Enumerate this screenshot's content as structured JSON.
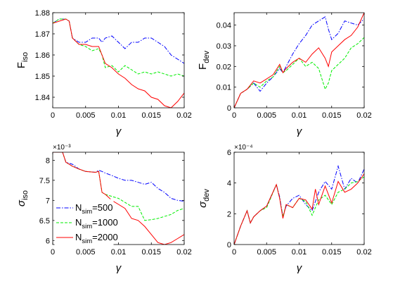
{
  "colors": {
    "n500": "#0000ff",
    "n1000": "#00ee00",
    "n2000": "#ff0000"
  },
  "legend": {
    "placement": "inside-left",
    "entries": [
      {
        "main": "N",
        "sub": "sim",
        "value": "=500",
        "color": "#0000ff",
        "style": "dashdot"
      },
      {
        "main": "N",
        "sub": "sim",
        "value": "=1000",
        "color": "#00ee00",
        "style": "dashed"
      },
      {
        "main": "N",
        "sub": "sim",
        "value": "=2000",
        "color": "#ff0000",
        "style": "solid"
      }
    ]
  },
  "chart_data": [
    {
      "type": "line",
      "xlabel": "γ",
      "ylabel": {
        "main": "F",
        "sub": "iso"
      },
      "multiplier": "",
      "xlim": [
        0,
        0.02
      ],
      "ylim": [
        1.835,
        1.88
      ],
      "xticks": [
        "0",
        "0.005",
        "0.01",
        "0.015",
        "0.02"
      ],
      "yticks": [
        "1.84",
        "1.85",
        "1.86",
        "1.87",
        "1.88"
      ],
      "x": [
        0,
        0.001,
        0.002,
        0.0025,
        0.003,
        0.004,
        0.005,
        0.006,
        0.007,
        0.0075,
        0.008,
        0.009,
        0.01,
        0.011,
        0.012,
        0.013,
        0.014,
        0.015,
        0.016,
        0.017,
        0.018,
        0.019,
        0.02
      ],
      "series": [
        {
          "name": "N_sim=500",
          "values": [
            1.875,
            1.877,
            1.877,
            1.876,
            1.868,
            1.866,
            1.866,
            1.868,
            1.868,
            1.866,
            1.868,
            1.869,
            1.866,
            1.863,
            1.866,
            1.866,
            1.868,
            1.868,
            1.866,
            1.864,
            1.86,
            1.858,
            1.856
          ]
        },
        {
          "name": "N_sim=1000",
          "values": [
            1.875,
            1.877,
            1.877,
            1.876,
            1.868,
            1.865,
            1.864,
            1.862,
            1.863,
            1.86,
            1.854,
            1.855,
            1.852,
            1.855,
            1.853,
            1.851,
            1.852,
            1.851,
            1.852,
            1.851,
            1.85,
            1.851,
            1.85
          ]
        },
        {
          "name": "N_sim=2000",
          "values": [
            1.875,
            1.876,
            1.877,
            1.876,
            1.868,
            1.865,
            1.865,
            1.864,
            1.864,
            1.86,
            1.856,
            1.854,
            1.851,
            1.849,
            1.846,
            1.844,
            1.843,
            1.84,
            1.839,
            1.836,
            1.835,
            1.838,
            1.842
          ]
        }
      ]
    },
    {
      "type": "line",
      "xlabel": "γ",
      "ylabel": {
        "main": "F",
        "sub": "dev"
      },
      "multiplier": "",
      "xlim": [
        0,
        0.02
      ],
      "ylim": [
        0,
        0.046
      ],
      "xticks": [
        "0",
        "0.005",
        "0.01",
        "0.015",
        "0.02"
      ],
      "yticks": [
        "0",
        "0.01",
        "0.02",
        "0.03",
        "0.04"
      ],
      "x": [
        0,
        0.001,
        0.002,
        0.003,
        0.004,
        0.005,
        0.006,
        0.007,
        0.0075,
        0.008,
        0.009,
        0.01,
        0.011,
        0.012,
        0.013,
        0.014,
        0.0145,
        0.015,
        0.016,
        0.017,
        0.018,
        0.019,
        0.02
      ],
      "series": [
        {
          "name": "N_sim=500",
          "values": [
            0,
            0.007,
            0.009,
            0.012,
            0.008,
            0.012,
            0.015,
            0.019,
            0.017,
            0.02,
            0.026,
            0.031,
            0.035,
            0.04,
            0.042,
            0.044,
            0.038,
            0.033,
            0.036,
            0.042,
            0.041,
            0.04,
            0.043
          ]
        },
        {
          "name": "N_sim=1000",
          "values": [
            0,
            0.007,
            0.009,
            0.012,
            0.01,
            0.013,
            0.015,
            0.02,
            0.017,
            0.018,
            0.021,
            0.024,
            0.02,
            0.022,
            0.019,
            0.009,
            0.012,
            0.018,
            0.021,
            0.024,
            0.029,
            0.031,
            0.034
          ]
        },
        {
          "name": "N_sim=2000",
          "values": [
            0,
            0.007,
            0.009,
            0.013,
            0.012,
            0.014,
            0.016,
            0.021,
            0.017,
            0.019,
            0.022,
            0.024,
            0.022,
            0.026,
            0.029,
            0.024,
            0.02,
            0.027,
            0.03,
            0.033,
            0.035,
            0.039,
            0.046
          ]
        }
      ]
    },
    {
      "type": "line",
      "xlabel": "γ",
      "ylabel": {
        "main": "σ",
        "sub": "iso"
      },
      "multiplier": "×10⁻³",
      "xlim": [
        0,
        0.02
      ],
      "ylim": [
        5.9,
        8.2
      ],
      "xticks": [
        "0",
        "0.005",
        "0.01",
        "0.015",
        "0.02"
      ],
      "yticks": [
        "6",
        "6.5",
        "7",
        "7.5",
        "8"
      ],
      "x": [
        0,
        0.0015,
        0.002,
        0.003,
        0.004,
        0.005,
        0.0065,
        0.007,
        0.0075,
        0.008,
        0.009,
        0.01,
        0.011,
        0.012,
        0.013,
        0.014,
        0.015,
        0.016,
        0.017,
        0.018,
        0.019,
        0.02
      ],
      "series": [
        {
          "name": "N_sim=500",
          "values": [
            8.2,
            8.2,
            7.95,
            7.9,
            7.78,
            7.72,
            7.7,
            7.75,
            7.72,
            7.68,
            7.62,
            7.55,
            7.5,
            7.5,
            7.45,
            7.4,
            7.45,
            7.3,
            7.2,
            7.05,
            7.0,
            6.98
          ]
        },
        {
          "name": "N_sim=1000",
          "values": [
            8.2,
            8.2,
            7.95,
            7.85,
            7.78,
            7.72,
            7.7,
            7.72,
            7.2,
            7.15,
            7.1,
            7.05,
            6.95,
            6.85,
            6.85,
            6.5,
            6.52,
            6.55,
            6.6,
            6.65,
            6.75,
            6.8
          ]
        },
        {
          "name": "N_sim=2000",
          "values": [
            8.2,
            8.2,
            7.95,
            7.85,
            7.78,
            7.72,
            7.7,
            7.72,
            7.2,
            7.15,
            7.0,
            6.9,
            6.8,
            6.55,
            6.5,
            6.35,
            6.15,
            5.95,
            5.9,
            5.95,
            6.05,
            6.15
          ]
        }
      ]
    },
    {
      "type": "line",
      "xlabel": "γ",
      "ylabel": {
        "main": "σ",
        "sub": "dev"
      },
      "multiplier": "×10⁻⁴",
      "xlim": [
        0,
        0.02
      ],
      "ylim": [
        0,
        6
      ],
      "xticks": [
        "0",
        "0.005",
        "0.01",
        "0.015",
        "0.02"
      ],
      "yticks": [
        "0",
        "2",
        "4",
        "6"
      ],
      "x": [
        0,
        0.001,
        0.002,
        0.0025,
        0.003,
        0.004,
        0.005,
        0.0065,
        0.007,
        0.0075,
        0.008,
        0.009,
        0.01,
        0.011,
        0.012,
        0.0125,
        0.013,
        0.014,
        0.015,
        0.016,
        0.017,
        0.018,
        0.019,
        0.02
      ],
      "series": [
        {
          "name": "N_sim=500",
          "values": [
            0,
            1.2,
            2.2,
            1.4,
            1.8,
            2.2,
            2.5,
            3.9,
            3.1,
            1.8,
            2.5,
            3.0,
            3.2,
            2.6,
            2.2,
            2.8,
            3.4,
            4.1,
            3.6,
            5.1,
            3.6,
            4.3,
            4.0,
            4.9
          ]
        },
        {
          "name": "N_sim=1000",
          "values": [
            0,
            1.2,
            2.2,
            1.4,
            1.8,
            2.2,
            2.4,
            3.9,
            3.0,
            1.8,
            2.6,
            2.4,
            3.0,
            2.8,
            1.9,
            2.4,
            2.9,
            3.2,
            2.6,
            3.4,
            3.6,
            4.0,
            4.1,
            4.4
          ]
        },
        {
          "name": "N_sim=2000",
          "values": [
            0,
            1.2,
            2.2,
            1.4,
            1.8,
            2.2,
            2.5,
            3.9,
            3.0,
            1.7,
            2.6,
            2.4,
            3.0,
            2.9,
            2.3,
            3.6,
            2.6,
            3.8,
            2.7,
            4.1,
            3.4,
            3.6,
            4.0,
            4.6
          ]
        }
      ]
    }
  ]
}
